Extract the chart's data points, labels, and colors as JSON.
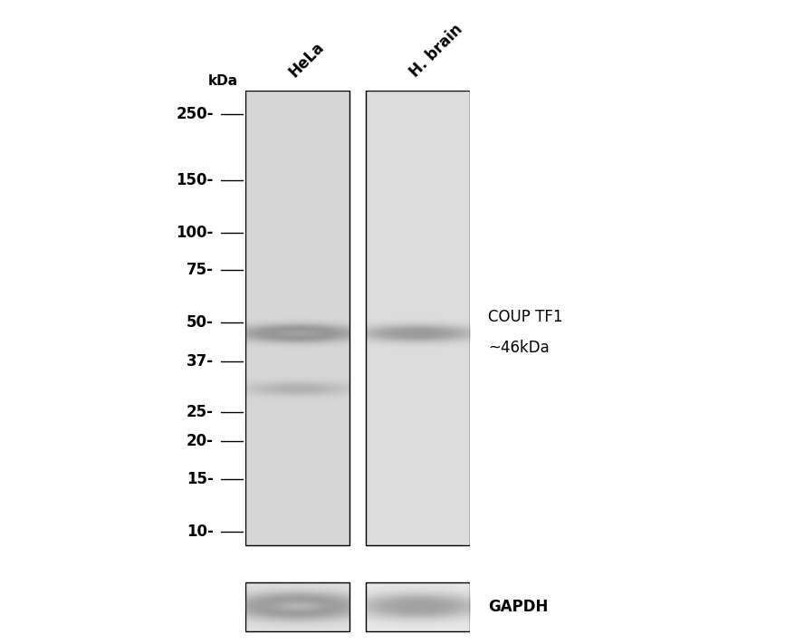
{
  "background_color": "#ffffff",
  "fig_width": 8.88,
  "fig_height": 7.11,
  "dpi": 100,
  "ladder_labels": [
    "250-",
    "150-",
    "100-",
    "75-",
    "50-",
    "37-",
    "25-",
    "20-",
    "15-",
    "10-"
  ],
  "ladder_positions": [
    250,
    150,
    100,
    75,
    50,
    37,
    25,
    20,
    15,
    10
  ],
  "kda_label": "kDa",
  "lane_labels": [
    "HeLa",
    "H. brain"
  ],
  "annotation_line1": "COUP TF1",
  "annotation_line2": "~46kDa",
  "annotation_kda": 46,
  "gapdh_label": "GAPDH",
  "lane_facecolor1": "#d6d6d6",
  "lane_facecolor2": "#dcdcdc",
  "band_kda_main": 46,
  "band_lane1_intensity": 0.82,
  "band_lane2_intensity": 0.55,
  "band_ns_kda": 30,
  "band_ns_intensity": 0.22,
  "gapdh_intensity1": 0.92,
  "gapdh_intensity2": 0.58,
  "border_color": "#000000",
  "text_color": "#000000",
  "font_size_ladder": 12,
  "font_size_lane": 12,
  "font_size_annot": 12,
  "font_size_gapdh": 12,
  "font_size_kda_label": 11,
  "log_min_kda": 8,
  "log_max_kda": 300
}
